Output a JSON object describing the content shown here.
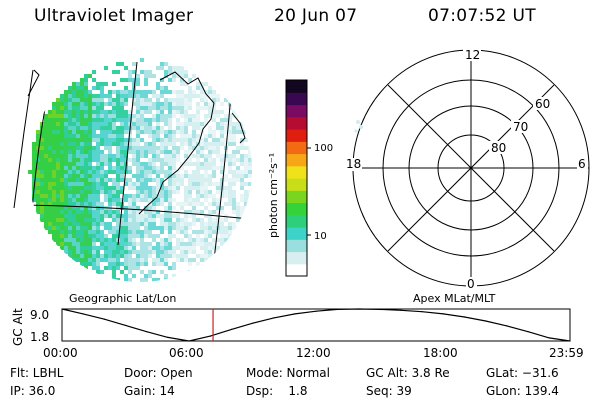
{
  "header": {
    "instrument": "Ultraviolet Imager",
    "date": "20 Jun 07",
    "time": "07:07:52 UT"
  },
  "map_panel": {
    "caption": "Geographic Lat/Lon"
  },
  "colorbar": {
    "unit_label": "photon cm⁻²s⁻¹",
    "scale": "log",
    "ticks": [
      "100",
      "10"
    ],
    "colors_bottom_to_top": [
      "#ffffff",
      "#d8eef0",
      "#9adfe0",
      "#3ed3c8",
      "#2ecf7a",
      "#34d33a",
      "#7ad51e",
      "#c8de18",
      "#f0e21a",
      "#f7a618",
      "#f26a14",
      "#e01e10",
      "#b60c32",
      "#7a0a62",
      "#3a0852",
      "#120620"
    ]
  },
  "polar_panel": {
    "caption": "Apex MLat/MLT",
    "mlt_labels": {
      "top": "12",
      "left": "18",
      "right": "6",
      "bottom": "0"
    },
    "mlat_labels": [
      "60",
      "70",
      "80"
    ]
  },
  "timeline": {
    "ylabel": "GC Alt",
    "yticks": [
      "9.0",
      "1.8"
    ],
    "xticks": [
      "00:00",
      "06:00",
      "12:00",
      "18:00",
      "23:59"
    ],
    "marker_color": "#cc2222"
  },
  "status": {
    "row1": [
      {
        "key": "flt",
        "text": "Flt: LBHL"
      },
      {
        "key": "door",
        "text": "Door: Open"
      },
      {
        "key": "mode",
        "text": "Mode: Normal"
      },
      {
        "key": "gcalt",
        "text": "GC Alt: 3.8 Re"
      },
      {
        "key": "glat",
        "text": "GLat: −31.6"
      }
    ],
    "row2": [
      {
        "key": "ip",
        "text": "IP: 36.0"
      },
      {
        "key": "gain",
        "text": "Gain: 14"
      },
      {
        "key": "dsp",
        "text": "Dsp:    1.8"
      },
      {
        "key": "seq",
        "text": "Seq: 39"
      },
      {
        "key": "glon",
        "text": "GLon: 139.4"
      }
    ]
  },
  "chart_data": {
    "type": "line",
    "title": "GC Alt",
    "x_unit": "UT (hours)",
    "xlim": [
      0,
      23.98
    ],
    "ylim": [
      1.8,
      9.0
    ],
    "x": [
      0,
      1,
      2,
      3,
      4,
      5,
      6,
      7,
      8,
      9,
      10,
      11,
      12,
      13,
      14,
      15,
      16,
      17,
      18,
      19,
      20,
      21,
      22,
      23,
      23.98
    ],
    "values": [
      9.0,
      7.9,
      6.7,
      5.3,
      3.9,
      2.6,
      1.8,
      2.9,
      4.4,
      5.8,
      7.0,
      7.9,
      8.5,
      8.9,
      9.0,
      8.9,
      8.7,
      8.4,
      7.9,
      7.2,
      6.3,
      5.2,
      3.9,
      2.5,
      1.8
    ],
    "current_time": 7.13,
    "current_value": 3.8
  }
}
